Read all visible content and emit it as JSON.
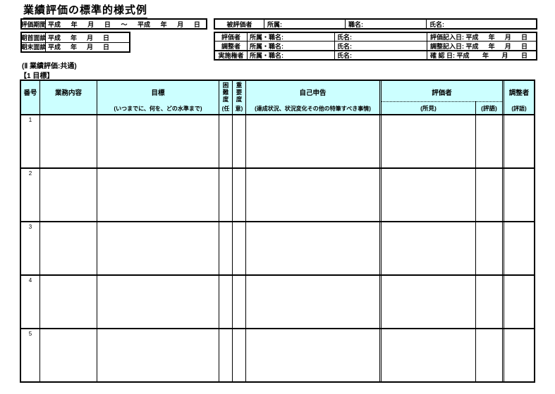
{
  "title": "業績評価の標準的様式例",
  "labels": {
    "heisei": "平成",
    "year": "年",
    "month": "月",
    "day": "日",
    "tilde": "～"
  },
  "period": {
    "label": "評価期間"
  },
  "meetings": {
    "first_label": "期首面談",
    "last_label": "期末面談"
  },
  "evaluatee": {
    "label": "被評価者",
    "affiliation": "所属:",
    "job_title": "職名:",
    "name": "氏名:"
  },
  "roles": {
    "affiliation_job": "所属・職名:",
    "name": "氏名:",
    "rows": [
      {
        "role": "評価者",
        "date_label": "評価記入日: 平成"
      },
      {
        "role": "調整者",
        "date_label": "調整記入日: 平成"
      },
      {
        "role": "実施権者",
        "date_label": "確 認 日: 平成"
      }
    ]
  },
  "section": {
    "part": "(Ⅱ 業績評価:共通)",
    "item": "【1 目標】"
  },
  "goal_table": {
    "header": {
      "number": "番号",
      "work_content": "業務内容",
      "goal": "目標",
      "goal_note": "(いつまでに、何を、どの水準まで)",
      "difficulty": "困難度",
      "importance": "重要度",
      "optional_open": "(任",
      "optional_close": "意)",
      "self_report": "自己申告",
      "self_report_note": "(達成状況、状況変化その他の特筆すべき事情)",
      "evaluator": "評価者",
      "evaluator_findings": "(所見)",
      "evaluator_grade": "(評語)",
      "adjuster": "調整者",
      "adjuster_grade": "(評語)"
    },
    "rows": [
      {
        "no": "1"
      },
      {
        "no": "2"
      },
      {
        "no": "3"
      },
      {
        "no": "4"
      },
      {
        "no": "5"
      }
    ]
  },
  "colors": {
    "header_bg": "#ccffff",
    "border": "#000000"
  }
}
